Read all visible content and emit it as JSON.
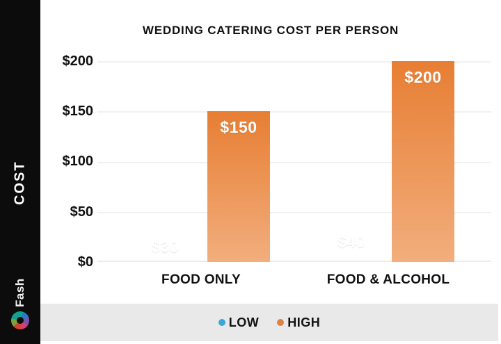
{
  "sidebar": {
    "axis_label": "COST",
    "brand": "Fash"
  },
  "chart_data": {
    "type": "bar",
    "title": "WEDDING CATERING COST PER PERSON",
    "categories": [
      "FOOD ONLY",
      "FOOD & ALCOHOL"
    ],
    "series": [
      {
        "name": "LOW",
        "values": [
          30,
          40
        ],
        "color_top": "#2badе2",
        "color_bottom": "#64c8ee"
      },
      {
        "name": "HIGH",
        "values": [
          150,
          200
        ],
        "color_top": "#e77e33",
        "color_bottom": "#f2ae7d"
      }
    ],
    "value_prefix": "$",
    "ylabel": "COST",
    "ylim": [
      0,
      200
    ],
    "yticks": [
      "$0",
      "$50",
      "$100",
      "$150",
      "$200"
    ],
    "grid": true,
    "legend_position": "bottom"
  },
  "legend": {
    "items": [
      {
        "label": "LOW",
        "color": "#38a8d8"
      },
      {
        "label": "HIGH",
        "color": "#dd8145"
      }
    ]
  }
}
